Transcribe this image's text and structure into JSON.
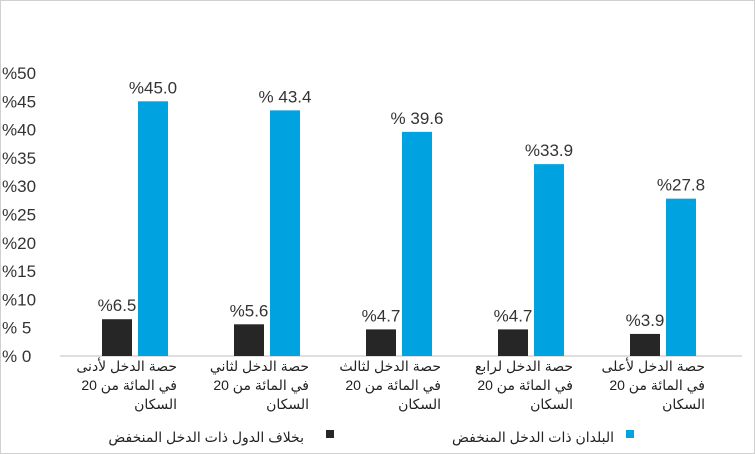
{
  "chart_data": {
    "type": "bar",
    "categories": [
      [
        "حصة الدخل لأدنى",
        "20 في المائة من",
        "السكان"
      ],
      [
        "حصة الدخل لثاني",
        "20 في المائة من",
        "السكان"
      ],
      [
        "حصة الدخل لثالث",
        "20 في المائة من",
        "السكان"
      ],
      [
        "حصة الدخل لرابع",
        "20 في المائة من",
        "السكان"
      ],
      [
        "حصة الدخل لأعلى",
        "20 في المائة من",
        "السكان"
      ]
    ],
    "series": [
      {
        "name": "بخلاف الدول ذات الدخل المنخفض",
        "color": "#262626",
        "values": [
          6.5,
          5.6,
          4.7,
          4.7,
          3.9
        ],
        "labels": [
          "%6.5",
          "%5.6",
          "%4.7",
          "%4.7",
          "%3.9"
        ]
      },
      {
        "name": "البلدان ذات الدخل المنخفض",
        "color": "#00a3e0",
        "values": [
          45.0,
          43.4,
          39.6,
          33.9,
          27.8
        ],
        "labels": [
          "%45.0",
          "% 43.4",
          "% 39.6",
          "%33.9",
          "%27.8"
        ]
      }
    ],
    "ylim": [
      0,
      50
    ],
    "y_ticks": [
      0,
      5,
      10,
      15,
      20,
      25,
      30,
      35,
      40,
      45,
      50
    ],
    "y_tick_labels": [
      "% 0",
      "% 5",
      "%10",
      "%15",
      "%20",
      "%25",
      "%30",
      "%35",
      "%40",
      "%45",
      "%50"
    ],
    "grid": false,
    "legend_position": "bottom"
  }
}
